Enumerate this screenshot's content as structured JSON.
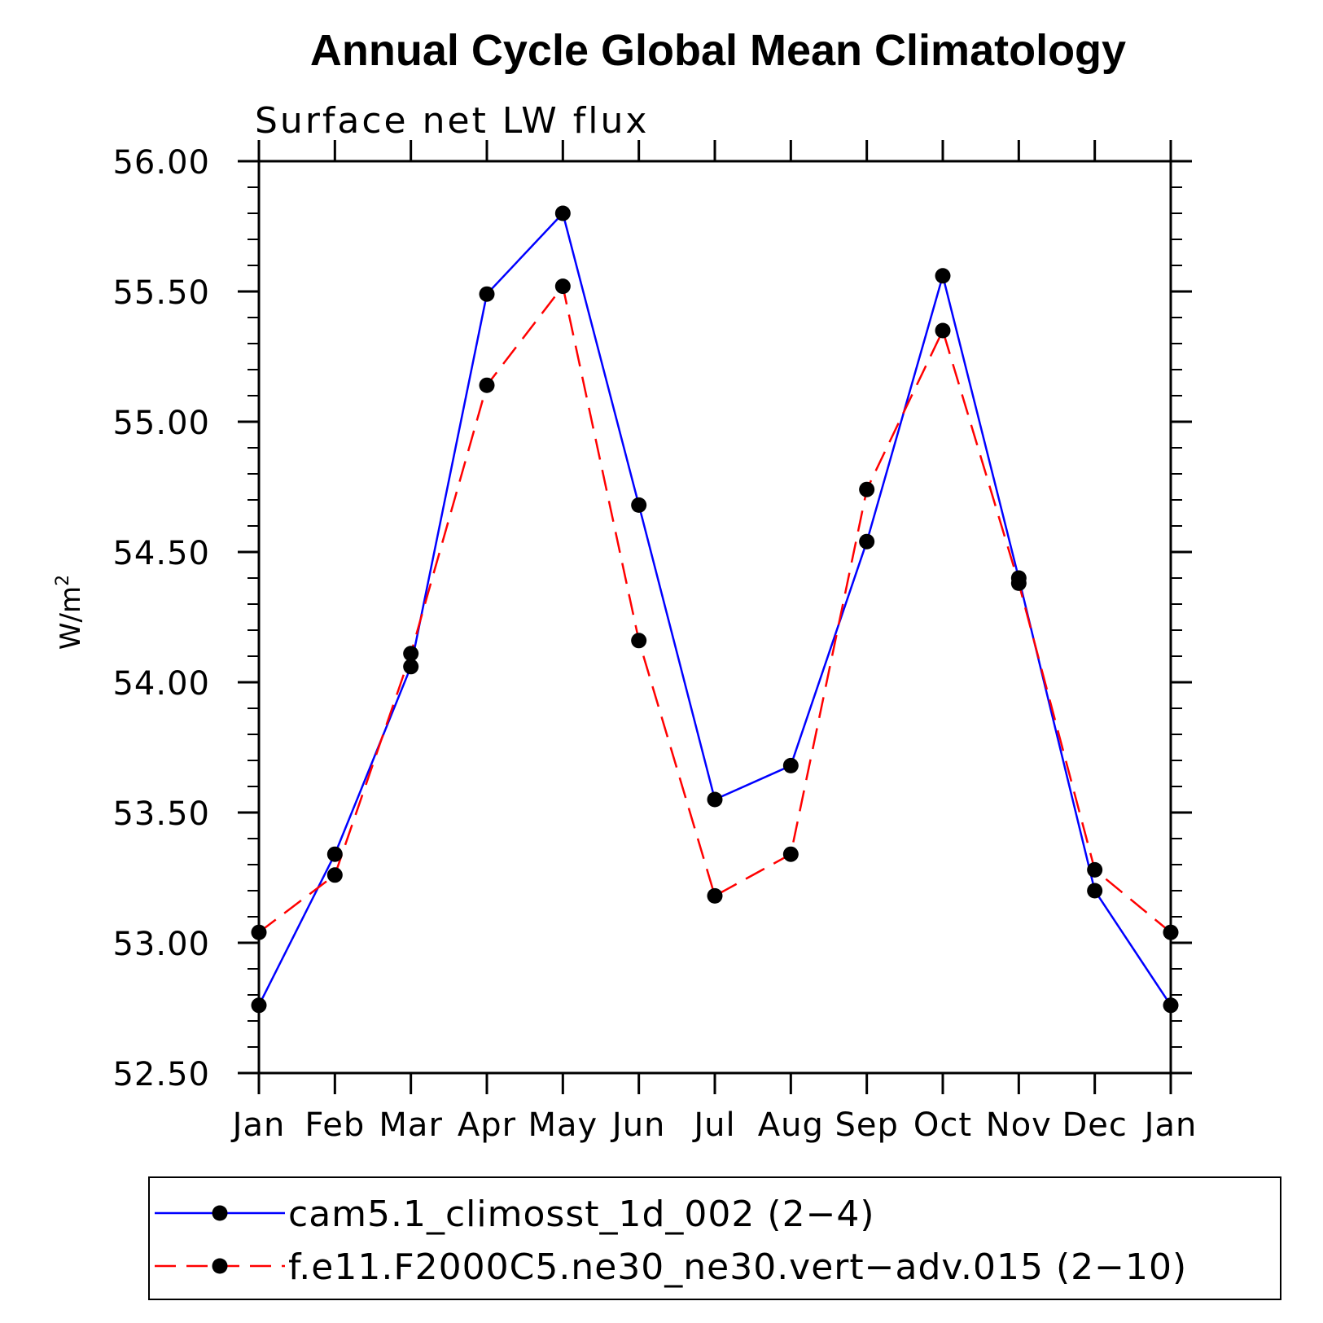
{
  "chart_data": {
    "type": "line",
    "title": "Annual Cycle Global Mean Climatology",
    "subtitle": "Surface net LW flux",
    "ylabel_base": "W/m",
    "ylabel_sup": "2",
    "xlabel": "",
    "categories": [
      "Jan",
      "Feb",
      "Mar",
      "Apr",
      "May",
      "Jun",
      "Jul",
      "Aug",
      "Sep",
      "Oct",
      "Nov",
      "Dec",
      "Jan"
    ],
    "ylim": [
      52.5,
      56.0
    ],
    "yticks": [
      "52.50",
      "53.00",
      "53.50",
      "54.00",
      "54.50",
      "55.00",
      "55.50",
      "56.00"
    ],
    "series": [
      {
        "name": "cam5.1_climosst_1d_002 (2−4)",
        "color": "#0000ff",
        "dash": "solid",
        "values": [
          52.76,
          53.34,
          54.06,
          55.49,
          55.8,
          54.68,
          53.55,
          53.68,
          54.54,
          55.56,
          54.4,
          53.2,
          52.76
        ]
      },
      {
        "name": "f.e11.F2000C5.ne30_ne30.vert−adv.015 (2−10)",
        "color": "#ff0000",
        "dash": "dashed",
        "values": [
          53.04,
          53.26,
          54.11,
          55.14,
          55.52,
          54.16,
          53.18,
          53.34,
          54.74,
          55.35,
          54.38,
          53.28,
          53.04
        ]
      }
    ],
    "legend_position": "bottom"
  }
}
